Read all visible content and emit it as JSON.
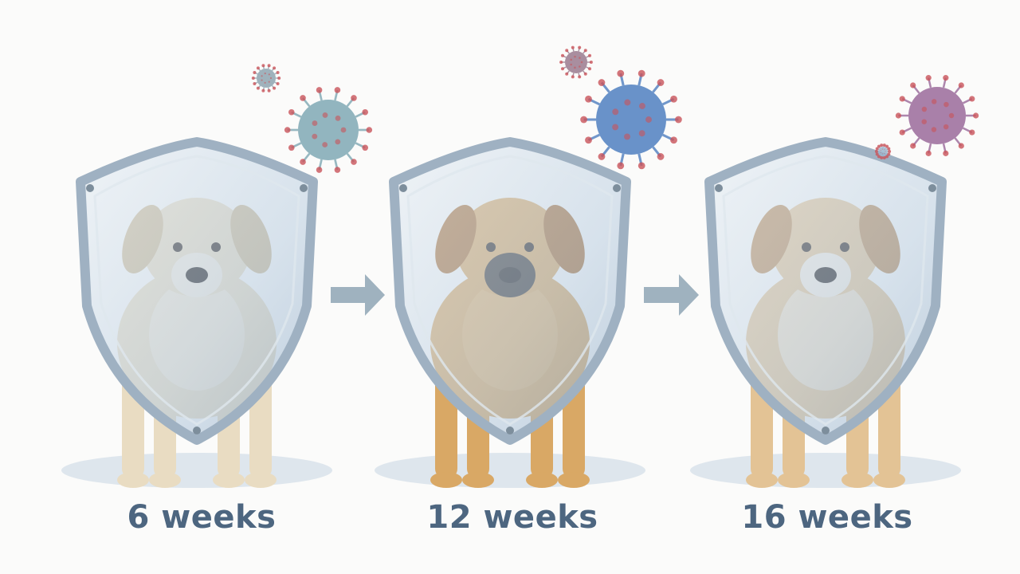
{
  "stages": [
    {
      "label": "6 weeks",
      "fur": "#e9dcc2",
      "fur_dark": "#cdb994",
      "muzzle": "#f3ece0",
      "virus_color": "#7fa8b4"
    },
    {
      "label": "12 weeks",
      "fur": "#d9a865",
      "fur_dark": "#a86e35",
      "muzzle": "#3a3634",
      "virus_color": "#4f7fc0"
    },
    {
      "label": "16 weeks",
      "fur": "#e3c395",
      "fur_dark": "#b98a57",
      "muzzle": "#f4ede3",
      "virus_color": "#9a6a9a"
    }
  ],
  "icons": {
    "shield": "shield-icon",
    "arrow": "arrow-right-icon",
    "virus": "virus-icon",
    "dog": "dog-illustration"
  },
  "colors": {
    "label": "#4d6680",
    "arrow": "#9fb2bf",
    "shield_rim": "#9fb1c2",
    "shield_fill": "#c9d8e6",
    "virus_spike": "#c9545a"
  }
}
